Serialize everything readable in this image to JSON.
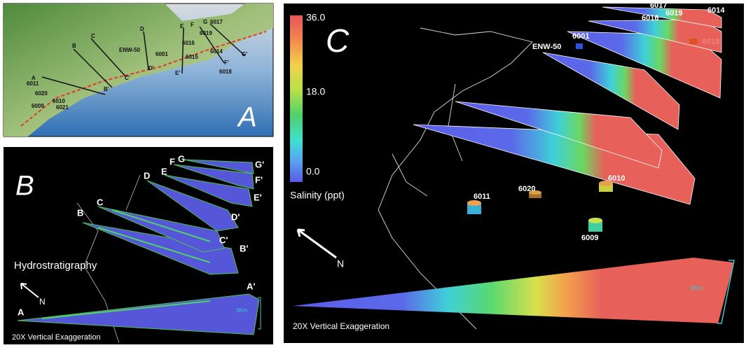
{
  "panel_a": {
    "label": "A",
    "transects": [
      "A",
      "B",
      "C",
      "D",
      "E",
      "F",
      "G",
      "B'",
      "C'",
      "D'",
      "E'",
      "F'",
      "G'"
    ],
    "wells": [
      "6011",
      "6020",
      "6010",
      "6009",
      "6021",
      "ENW-50",
      "6001",
      "6017",
      "6019",
      "6016",
      "6015",
      "6014",
      "6018"
    ]
  },
  "panel_b": {
    "label": "B",
    "title": "Hydrostratigraphy",
    "transects": [
      "A",
      "A'",
      "B",
      "B'",
      "C",
      "C'",
      "D",
      "D'",
      "E",
      "E'",
      "F",
      "F'",
      "G",
      "G'"
    ],
    "north": "N",
    "scale": "3Km",
    "exaggeration": "20X Vertical Exaggeration"
  },
  "panel_c": {
    "label": "C",
    "colorbar": {
      "ticks": [
        "36.0",
        "18.0",
        "0.0"
      ],
      "title": "Salinity (ppt)"
    },
    "wells": [
      "ENW-50",
      "6001",
      "6017",
      "6014",
      "6019",
      "6016",
      "6018",
      "6020",
      "6010",
      "6011",
      "6009"
    ],
    "north": "N",
    "scale": "3Km",
    "exaggeration": "20X Vertical Exaggeration"
  }
}
